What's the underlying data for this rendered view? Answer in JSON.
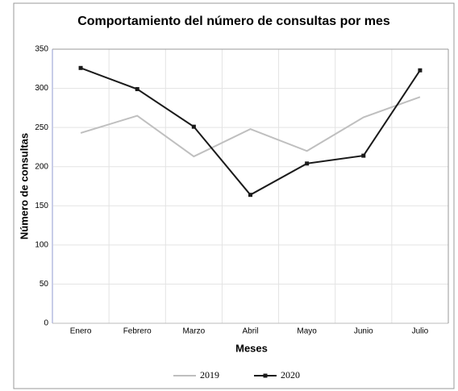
{
  "chart_data": {
    "type": "line",
    "title": "Comportamiento del número de consultas por mes",
    "x_label": "Meses",
    "y_label": "Número de consultas",
    "categories": [
      "Enero",
      "Febrero",
      "Marzo",
      "Abril",
      "Mayo",
      "Junio",
      "Julio"
    ],
    "series": [
      {
        "name": "2019",
        "color": "#bfbfbf",
        "values": [
          243,
          265,
          213,
          248,
          220,
          263,
          289
        ]
      },
      {
        "name": "2020",
        "color": "#1a1a1a",
        "values": [
          326,
          299,
          251,
          164,
          204,
          214,
          323
        ]
      }
    ],
    "ylim": [
      0,
      350
    ],
    "yticks": [
      0,
      50,
      100,
      150,
      200,
      250,
      300,
      350
    ],
    "grid": true
  }
}
